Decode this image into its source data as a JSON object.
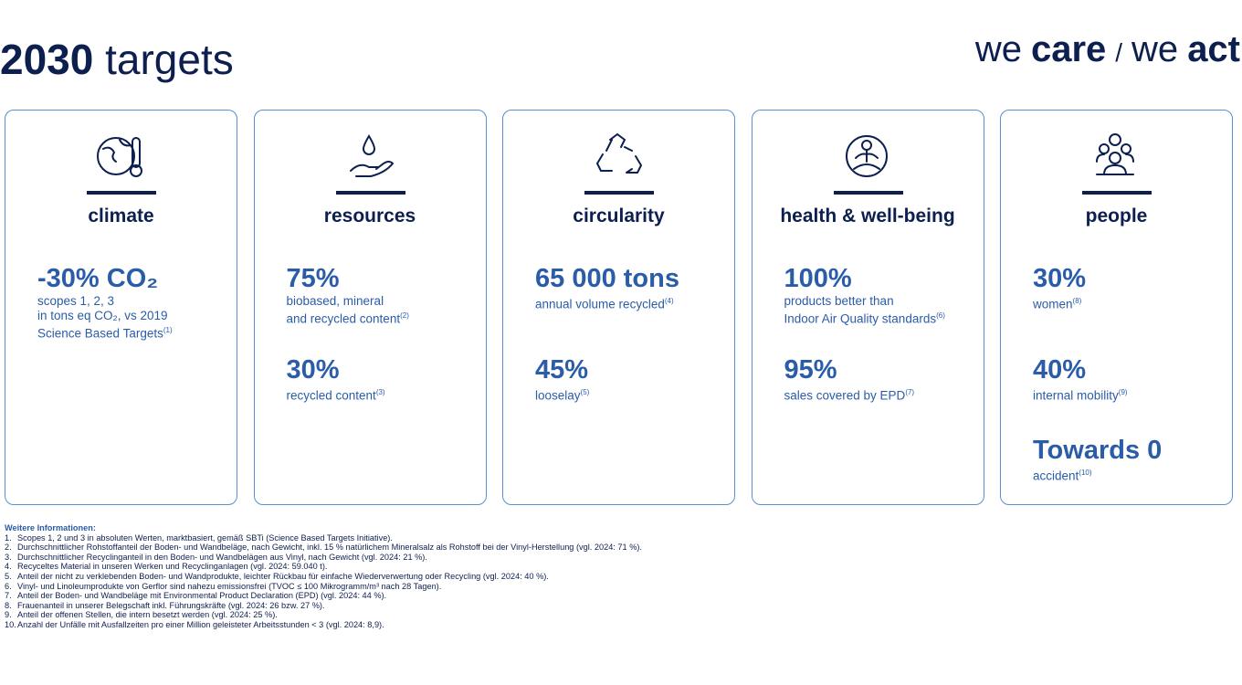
{
  "header": {
    "title_bold": "2030",
    "title_rest": "targets",
    "tagline": [
      {
        "text": "we",
        "bold": false
      },
      {
        "text": "care",
        "bold": true
      },
      {
        "text": "/",
        "bold": false
      },
      {
        "text": "we",
        "bold": false
      },
      {
        "text": "act",
        "bold": true
      }
    ]
  },
  "cards": [
    {
      "title": "climate",
      "targets": [
        {
          "value": "-30% CO₂",
          "desc": [
            "scopes 1, 2, 3",
            "in tons eq CO₂, vs 2019",
            "Science Based Targets"
          ],
          "note": "(1)"
        }
      ]
    },
    {
      "title": "resources",
      "targets": [
        {
          "value": "75%",
          "desc": [
            "biobased, mineral",
            "and recycled content"
          ],
          "note": "(2)"
        },
        {
          "value": "30%",
          "desc": [
            "recycled content"
          ],
          "note": "(3)"
        }
      ]
    },
    {
      "title": "circularity",
      "targets": [
        {
          "value": "65 000 tons",
          "desc": [
            "annual volume recycled"
          ],
          "note": "(4)"
        },
        {
          "value": "45%",
          "desc": [
            "looselay"
          ],
          "note": "(5)"
        }
      ]
    },
    {
      "title": "health & well-being",
      "targets": [
        {
          "value": "100%",
          "desc": [
            "products better than",
            "Indoor Air Quality standards"
          ],
          "note": "(6)"
        },
        {
          "value": "95%",
          "desc": [
            "sales covered by EPD"
          ],
          "note": "(7)"
        }
      ]
    },
    {
      "title": "people",
      "targets": [
        {
          "value": "30%",
          "desc": [
            "women"
          ],
          "note": "(8)"
        },
        {
          "value": "40%",
          "desc": [
            "internal mobility"
          ],
          "note": "(9)"
        },
        {
          "value": "Towards 0",
          "desc": [
            "accident"
          ],
          "note": "(10)"
        }
      ]
    }
  ],
  "footnotes": {
    "heading": "Weitere Informationen:",
    "items": [
      {
        "number": "1.",
        "text": "Scopes 1, 2 und 3 in absoluten Werten, marktbasiert, gemäß SBTi (Science Based Targets Initiative)."
      },
      {
        "number": "2.",
        "text": "Durchschnittlicher Rohstoffanteil der Boden- und Wandbeläge, nach Gewicht, inkl. 15 % natürlichem Mineralsalz als Rohstoff bei der Vinyl-Herstellung (vgl. 2024: 71 %)."
      },
      {
        "number": "3.",
        "text": "Durchschnittlicher Recyclinganteil in den Boden- und Wandbelägen aus Vinyl, nach Gewicht (vgl. 2024: 21 %)."
      },
      {
        "number": "4.",
        "text": "Recyceltes Material in unseren Werken und Recyclinganlagen (vgl. 2024: 59.040 t)."
      },
      {
        "number": "5.",
        "text": "Anteil der nicht zu verklebenden Boden- und Wandprodukte, leichter Rückbau für einfache Wiederverwertung oder Recycling (vgl. 2024: 40 %)."
      },
      {
        "number": "6.",
        "text": "Vinyl- und Linoleumprodukte von Gerflor sind nahezu emissionsfrei (TVOC ≤ 100 Mikrogramm/m³ nach 28 Tagen)."
      },
      {
        "number": "7.",
        "text": "Anteil der Boden- und Wandbeläge mit Environmental Product Declaration (EPD) (vgl. 2024: 44 %)."
      },
      {
        "number": "8.",
        "text": "Frauenanteil in unserer Belegschaft inkl. Führungskräfte (vgl. 2024: 26 bzw. 27 %)."
      },
      {
        "number": "9.",
        "text": "Anteil der offenen Stellen, die intern besetzt werden (vgl. 2024: 25 %)."
      },
      {
        "number": "10.",
        "text": "Anzahl der Unfälle mit Ausfallzeiten pro einer Million geleisteter Arbeitsstunden < 3 (vgl. 2024: 8,9)."
      }
    ]
  }
}
